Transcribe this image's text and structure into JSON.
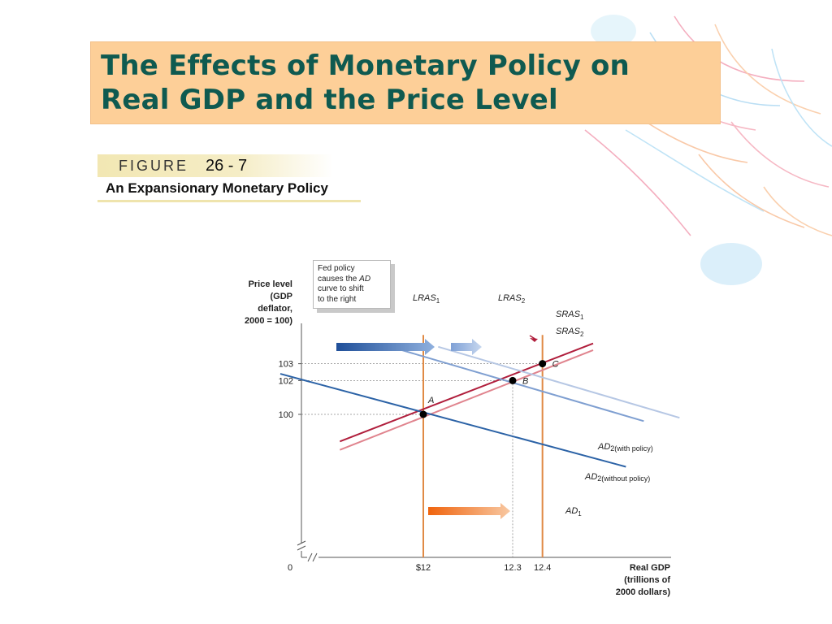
{
  "slide": {
    "title_line1": "The Effects of Monetary Policy on",
    "title_line2": "Real GDP and the Price Level"
  },
  "figure": {
    "word": "FIGURE",
    "number": "26 - 7",
    "caption": "An Expansionary Monetary Policy"
  },
  "colors": {
    "title_bg": "#fdcf98",
    "title_text": "#0f5a50",
    "lras": "#e08a45",
    "sras1": "#b01e3c",
    "sras2": "#e0848e",
    "ad1": "#2b62a6",
    "ad2_without": "#7f9fd1",
    "ad2_with": "#b6c7e4"
  },
  "chart_data": {
    "type": "line",
    "ylabel_lines": [
      "Price level",
      "(GDP",
      "deflator,",
      "2000 = 100)"
    ],
    "xlabel_lines": [
      "Real GDP",
      "(trillions of",
      "2000 dollars)"
    ],
    "y_origin_label": "0",
    "y_ticks": [
      {
        "value": 100,
        "label": "100"
      },
      {
        "value": 102,
        "label": "102"
      },
      {
        "value": 103,
        "label": "103"
      }
    ],
    "x_ticks": [
      {
        "value": 12,
        "label": "$12"
      },
      {
        "value": 12.3,
        "label": "12.3"
      },
      {
        "value": 12.4,
        "label": "12.4"
      }
    ],
    "xlim": [
      11.5,
      12.8
    ],
    "ylim": [
      97,
      105
    ],
    "series": [
      {
        "name": "LRAS",
        "sub": "1",
        "kind": "vertical",
        "x": 12.0,
        "y_range": [
          96.2,
          104.7
        ]
      },
      {
        "name": "LRAS",
        "sub": "2",
        "kind": "vertical",
        "x": 12.4,
        "y_range": [
          96.2,
          104.7
        ]
      },
      {
        "name": "SRAS",
        "sub": "1",
        "kind": "line",
        "points": [
          [
            11.72,
            98.4
          ],
          [
            12.57,
            104.2
          ]
        ]
      },
      {
        "name": "SRAS",
        "sub": "2",
        "kind": "line",
        "points": [
          [
            11.72,
            97.9
          ],
          [
            12.57,
            103.8
          ]
        ]
      },
      {
        "name": "AD",
        "sub": "1",
        "kind": "line",
        "points": [
          [
            11.52,
            102.4
          ],
          [
            12.68,
            96.9
          ]
        ]
      },
      {
        "name": "AD",
        "sub": "2(without policy)",
        "kind": "line",
        "points": [
          [
            11.87,
            104.1
          ],
          [
            12.74,
            99.6
          ]
        ]
      },
      {
        "name": "AD",
        "sub": "2(with policy)",
        "kind": "line",
        "points": [
          [
            12.05,
            104.0
          ],
          [
            12.86,
            99.8
          ]
        ]
      }
    ],
    "points": [
      {
        "label": "A",
        "x": 12.0,
        "y": 100
      },
      {
        "label": "B",
        "x": 12.3,
        "y": 102
      },
      {
        "label": "C",
        "x": 12.4,
        "y": 103
      }
    ],
    "annotations": {
      "note_line1": "Fed policy",
      "note_line2_pre": "causes the ",
      "note_line2_em": "AD",
      "note_line3": "curve to shift",
      "note_line4": "to the right"
    }
  }
}
